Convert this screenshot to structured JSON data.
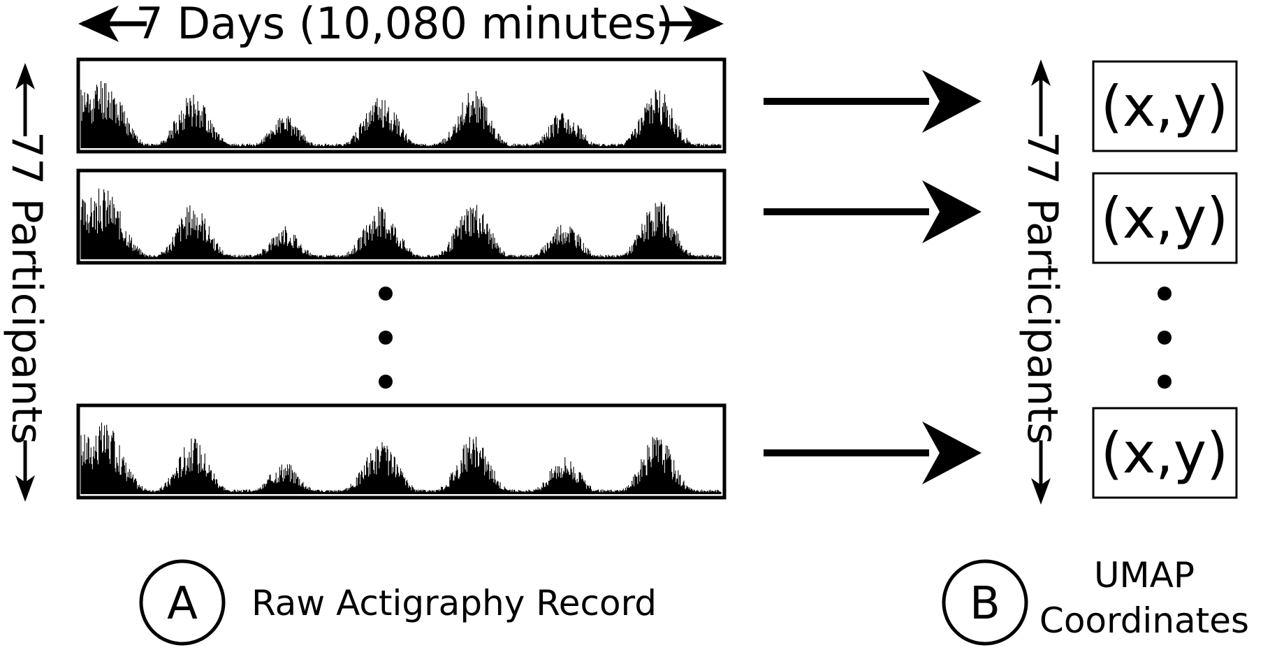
{
  "timespan_label": "7 Days (10,080 minutes)",
  "participants_label": "77 Participants",
  "coordinate_label": "(x,y)",
  "panel_a": {
    "letter": "A",
    "caption": "Raw Actigraphy Record"
  },
  "panel_b": {
    "letter": "B",
    "caption_line1": "UMAP",
    "caption_line2": "Coordinates"
  },
  "colors": {
    "ink": "#000000",
    "background": "#ffffff"
  }
}
